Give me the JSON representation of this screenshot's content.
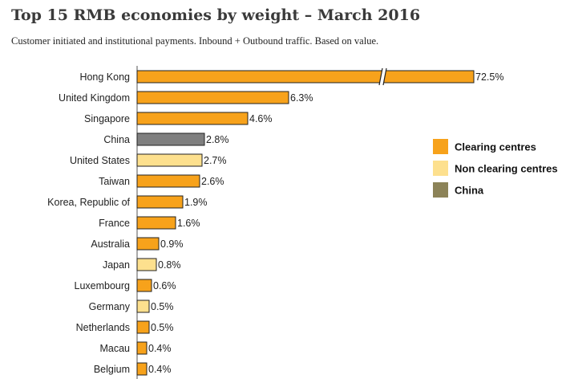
{
  "chart_data": {
    "type": "bar",
    "orientation": "horizontal",
    "title": "Top 15 RMB economies by weight – March 2016",
    "subtitle": "Customer initiated and institutional payments. Inbound + Outbound traffic. Based on value.",
    "categories": [
      "Hong Kong",
      "United Kingdom",
      "Singapore",
      "China",
      "United States",
      "Taiwan",
      "Korea, Republic of",
      "France",
      "Australia",
      "Japan",
      "Luxembourg",
      "Germany",
      "Netherlands",
      "Macau",
      "Belgium"
    ],
    "values": [
      72.5,
      6.3,
      4.6,
      2.8,
      2.7,
      2.6,
      1.9,
      1.6,
      0.9,
      0.8,
      0.6,
      0.5,
      0.5,
      0.4,
      0.4
    ],
    "value_labels": [
      "72.5%",
      "6.3%",
      "4.6%",
      "2.8%",
      "2.7%",
      "2.6%",
      "1.9%",
      "1.6%",
      "0.9%",
      "0.8%",
      "0.6%",
      "0.5%",
      "0.5%",
      "0.4%",
      "0.4%"
    ],
    "groups": [
      "clearing",
      "clearing",
      "clearing",
      "china",
      "non_clearing",
      "clearing",
      "clearing",
      "clearing",
      "clearing",
      "non_clearing",
      "clearing",
      "non_clearing",
      "clearing",
      "clearing",
      "clearing"
    ],
    "axis_break": true,
    "grid": false,
    "legend_position": "right",
    "legend": [
      {
        "key": "clearing",
        "label": "Clearing centres",
        "color": "#F7A21B"
      },
      {
        "key": "non_clearing",
        "label": "Non clearing centres",
        "color": "#FDE08E"
      },
      {
        "key": "china",
        "label": "China",
        "color": "#7F7F7F"
      }
    ],
    "legend_china_color": "#8C8358"
  }
}
